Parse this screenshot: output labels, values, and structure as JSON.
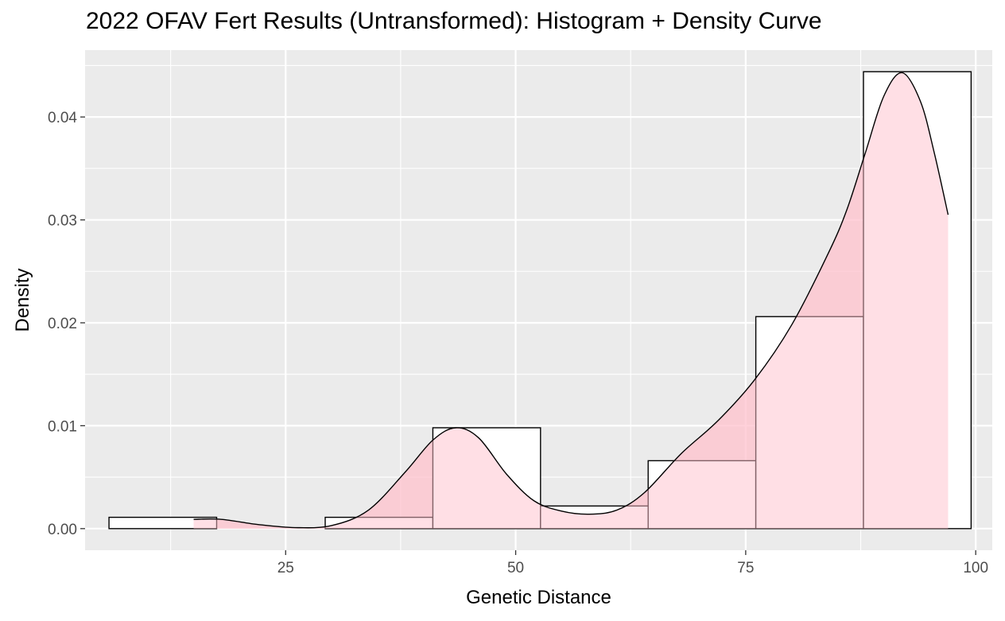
{
  "title": "2022 OFAV Fert Results (Untransformed): Histogram + Density Curve",
  "chart_data": {
    "type": "bar",
    "title": "2022 OFAV Fert Results (Untransformed): Histogram + Density Curve",
    "xlabel": "Genetic Distance",
    "ylabel": "Density",
    "xlim": [
      3.2,
      101.8
    ],
    "ylim": [
      -0.0021,
      0.0465
    ],
    "x_ticks": [
      25,
      50,
      75,
      100
    ],
    "x_tick_labels": [
      "25",
      "50",
      "75",
      "100"
    ],
    "y_ticks": [
      0.0,
      0.01,
      0.02,
      0.03,
      0.04
    ],
    "y_tick_labels": [
      "0.00",
      "0.01",
      "0.02",
      "0.03",
      "0.04"
    ],
    "grid": true,
    "histogram": {
      "bins": [
        {
          "x0": 5.8,
          "x1": 17.5,
          "density": 0.0011
        },
        {
          "x0": 17.5,
          "x1": 29.3,
          "density": 0.0
        },
        {
          "x0": 29.3,
          "x1": 41.0,
          "density": 0.0011
        },
        {
          "x0": 41.0,
          "x1": 52.7,
          "density": 0.0098
        },
        {
          "x0": 52.7,
          "x1": 64.4,
          "density": 0.0022
        },
        {
          "x0": 64.4,
          "x1": 76.1,
          "density": 0.0066
        },
        {
          "x0": 76.1,
          "x1": 87.8,
          "density": 0.0206
        },
        {
          "x0": 87.8,
          "x1": 99.5,
          "density": 0.0444
        }
      ]
    },
    "density_curve": {
      "x": [
        15.0,
        18.0,
        22.0,
        26.0,
        30.0,
        34.0,
        38.0,
        41.0,
        43.5,
        46.0,
        49.0,
        52.0,
        55.0,
        58.0,
        61.0,
        64.0,
        68.0,
        72.0,
        76.0,
        80.0,
        84.0,
        86.0,
        88.0,
        90.0,
        92.0,
        94.0,
        95.5,
        97.0
      ],
      "y": [
        0.0009,
        0.0009,
        0.0004,
        0.0001,
        0.0003,
        0.0018,
        0.0055,
        0.0086,
        0.0098,
        0.0088,
        0.0053,
        0.0027,
        0.0017,
        0.0014,
        0.0018,
        0.0035,
        0.0073,
        0.0105,
        0.0145,
        0.0198,
        0.0268,
        0.031,
        0.0365,
        0.042,
        0.0443,
        0.0415,
        0.0365,
        0.0305
      ]
    },
    "colors": {
      "panel": "#EBEBEB",
      "grid_major": "#FFFFFF",
      "bar_fill": "#FFFFFF",
      "bar_stroke": "#000000",
      "density_fill": "#FFC0CB",
      "curve": "#000000"
    }
  }
}
